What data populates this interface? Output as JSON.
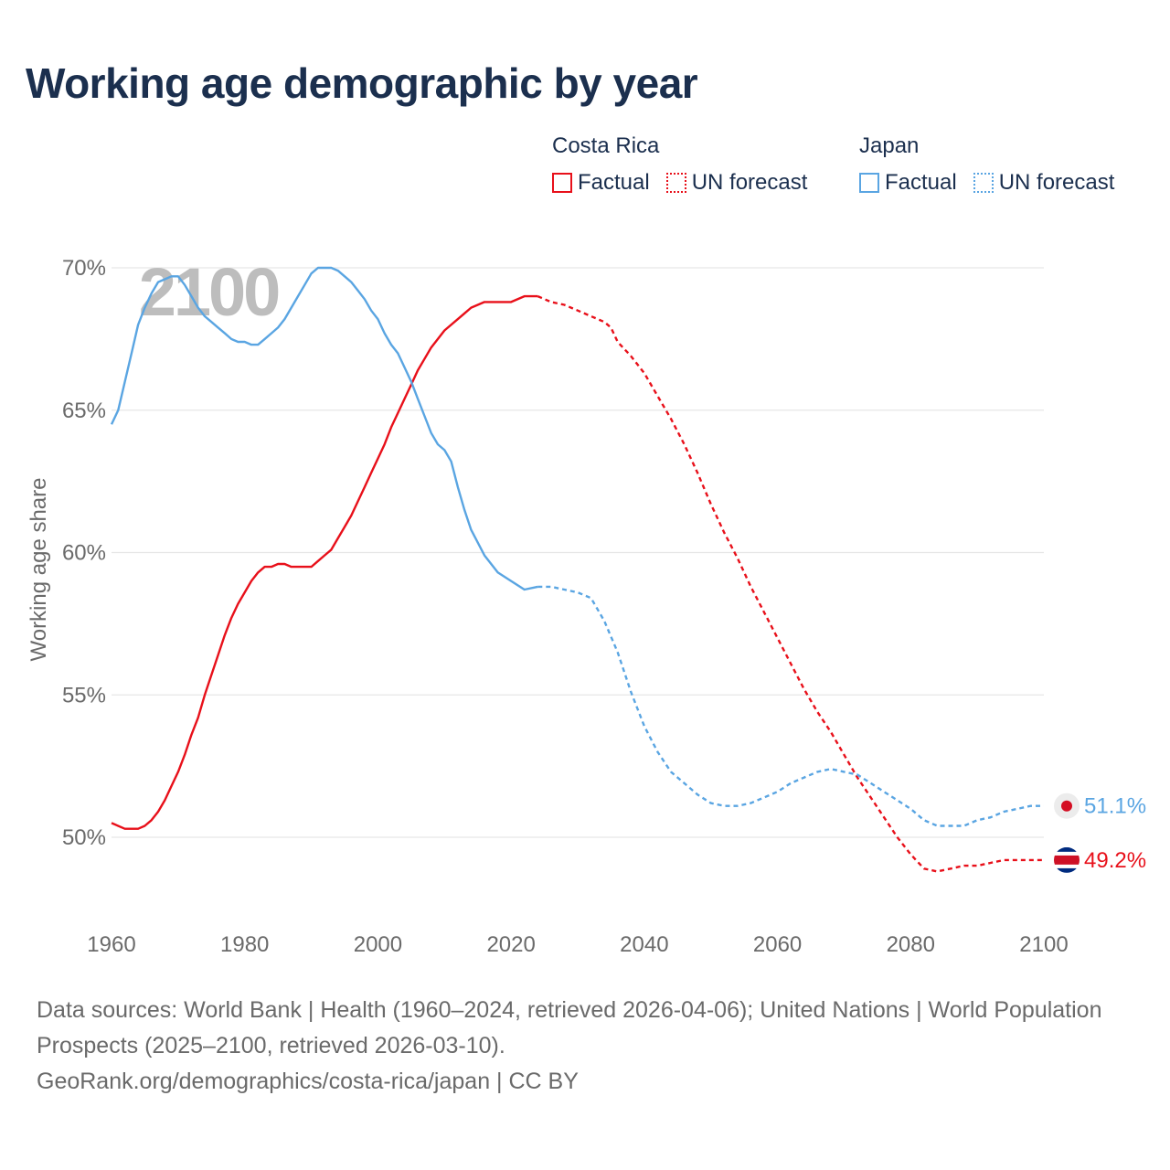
{
  "title": "Working age demographic by year",
  "legend": {
    "groups": [
      {
        "name": "Costa Rica",
        "color": "#e8101a",
        "items": [
          "Factual",
          "UN forecast"
        ]
      },
      {
        "name": "Japan",
        "color": "#5aa5e2",
        "items": [
          "Factual",
          "UN forecast"
        ]
      }
    ]
  },
  "year_watermark": "2100",
  "end_labels": {
    "japan": "51.1%",
    "costa_rica": "49.2%"
  },
  "footer": {
    "sources": "Data sources: World Bank | Health (1960–2024, retrieved 2026-04-06); United Nations | World Population Prospects (2025–2100, retrieved 2026-03-10).",
    "link": "GeoRank.org/demographics/costa-rica/japan | CC BY"
  },
  "chart_data": {
    "type": "line",
    "title": "Working age demographic by year",
    "xlabel": "",
    "ylabel": "Working age share",
    "xlim": [
      1960,
      2100
    ],
    "ylim": [
      47.5,
      70.5
    ],
    "x_ticks": [
      1960,
      1980,
      2000,
      2020,
      2040,
      2060,
      2080,
      2100
    ],
    "y_ticks": [
      50,
      55,
      60,
      65,
      70
    ],
    "y_tick_labels": [
      "50%",
      "55%",
      "60%",
      "65%",
      "70%"
    ],
    "grid": true,
    "forecast_start": 2024,
    "series": [
      {
        "name": "Costa Rica",
        "color": "#e8101a",
        "x": [
          1960,
          1962,
          1964,
          1965,
          1966,
          1967,
          1968,
          1969,
          1970,
          1971,
          1972,
          1973,
          1974,
          1975,
          1976,
          1977,
          1978,
          1979,
          1980,
          1981,
          1982,
          1983,
          1984,
          1985,
          1986,
          1987,
          1988,
          1989,
          1990,
          1991,
          1992,
          1993,
          1994,
          1995,
          1996,
          1997,
          1998,
          1999,
          2000,
          2001,
          2002,
          2003,
          2004,
          2005,
          2006,
          2007,
          2008,
          2009,
          2010,
          2012,
          2014,
          2016,
          2018,
          2020,
          2022,
          2024,
          2026,
          2028,
          2030,
          2032,
          2034,
          2035,
          2036,
          2038,
          2040,
          2042,
          2044,
          2046,
          2048,
          2050,
          2052,
          2054,
          2056,
          2058,
          2060,
          2062,
          2064,
          2066,
          2068,
          2070,
          2072,
          2074,
          2076,
          2078,
          2080,
          2082,
          2084,
          2086,
          2088,
          2090,
          2092,
          2094,
          2096,
          2098,
          2100
        ],
        "y": [
          50.5,
          50.3,
          50.3,
          50.4,
          50.6,
          50.9,
          51.3,
          51.8,
          52.3,
          52.9,
          53.6,
          54.2,
          55.0,
          55.7,
          56.4,
          57.1,
          57.7,
          58.2,
          58.6,
          59.0,
          59.3,
          59.5,
          59.5,
          59.6,
          59.6,
          59.5,
          59.5,
          59.5,
          59.5,
          59.7,
          59.9,
          60.1,
          60.5,
          60.9,
          61.3,
          61.8,
          62.3,
          62.8,
          63.3,
          63.8,
          64.4,
          64.9,
          65.4,
          65.9,
          66.4,
          66.8,
          67.2,
          67.5,
          67.8,
          68.2,
          68.6,
          68.8,
          68.8,
          68.8,
          69.0,
          69.0,
          68.8,
          68.7,
          68.5,
          68.3,
          68.1,
          67.9,
          67.4,
          66.9,
          66.3,
          65.5,
          64.7,
          63.8,
          62.8,
          61.7,
          60.7,
          59.8,
          58.8,
          57.9,
          57.0,
          56.1,
          55.2,
          54.4,
          53.7,
          52.9,
          52.1,
          51.4,
          50.7,
          50.0,
          49.4,
          48.9,
          48.8,
          48.9,
          49.0,
          49.0,
          49.1,
          49.2,
          49.2,
          49.2,
          49.2
        ]
      },
      {
        "name": "Japan",
        "color": "#5aa5e2",
        "x": [
          1960,
          1961,
          1962,
          1963,
          1964,
          1965,
          1966,
          1967,
          1968,
          1969,
          1970,
          1971,
          1972,
          1973,
          1974,
          1975,
          1976,
          1977,
          1978,
          1979,
          1980,
          1981,
          1982,
          1983,
          1984,
          1985,
          1986,
          1987,
          1988,
          1989,
          1990,
          1991,
          1992,
          1993,
          1994,
          1995,
          1996,
          1997,
          1998,
          1999,
          2000,
          2001,
          2002,
          2003,
          2004,
          2005,
          2006,
          2007,
          2008,
          2009,
          2010,
          2011,
          2012,
          2013,
          2014,
          2016,
          2018,
          2020,
          2022,
          2024,
          2026,
          2028,
          2030,
          2032,
          2034,
          2036,
          2038,
          2040,
          2042,
          2044,
          2046,
          2048,
          2050,
          2052,
          2054,
          2056,
          2058,
          2060,
          2062,
          2064,
          2066,
          2068,
          2070,
          2072,
          2074,
          2076,
          2078,
          2080,
          2082,
          2084,
          2086,
          2088,
          2090,
          2092,
          2094,
          2096,
          2098,
          2100
        ],
        "y": [
          64.5,
          65.0,
          66.0,
          67.0,
          68.0,
          68.6,
          69.1,
          69.5,
          69.6,
          69.7,
          69.7,
          69.4,
          69.0,
          68.6,
          68.3,
          68.1,
          67.9,
          67.7,
          67.5,
          67.4,
          67.4,
          67.3,
          67.3,
          67.5,
          67.7,
          67.9,
          68.2,
          68.6,
          69.0,
          69.4,
          69.8,
          70.0,
          70.0,
          70.0,
          69.9,
          69.7,
          69.5,
          69.2,
          68.9,
          68.5,
          68.2,
          67.7,
          67.3,
          67.0,
          66.5,
          66.0,
          65.4,
          64.8,
          64.2,
          63.8,
          63.6,
          63.2,
          62.3,
          61.5,
          60.8,
          59.9,
          59.3,
          59.0,
          58.7,
          58.8,
          58.8,
          58.7,
          58.6,
          58.4,
          57.6,
          56.5,
          55.1,
          53.9,
          53.0,
          52.3,
          51.9,
          51.5,
          51.2,
          51.1,
          51.1,
          51.2,
          51.4,
          51.6,
          51.9,
          52.1,
          52.3,
          52.4,
          52.3,
          52.2,
          51.9,
          51.6,
          51.3,
          51.0,
          50.6,
          50.4,
          50.4,
          50.4,
          50.6,
          50.7,
          50.9,
          51.0,
          51.1,
          51.1
        ]
      }
    ]
  }
}
